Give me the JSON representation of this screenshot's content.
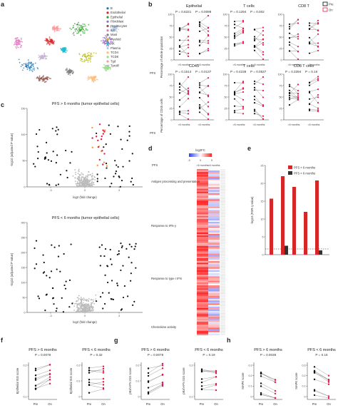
{
  "panels": {
    "a": "a",
    "b": "b",
    "c": "c",
    "d": "d",
    "e": "e",
    "f": "f",
    "g": "g",
    "h": "h"
  },
  "panel_a": {
    "legend": [
      {
        "label": "B",
        "color": "#1f77b4"
      },
      {
        "label": "Endothelial",
        "color": "#d62728"
      },
      {
        "label": "Epithelial",
        "color": "#2ca02c"
      },
      {
        "label": "Fibroblast",
        "color": "#9467bd"
      },
      {
        "label": "Hepatocytes",
        "color": "#8c564b"
      },
      {
        "label": "ILC",
        "color": "#e377c2"
      },
      {
        "label": "Mast",
        "color": "#7f7f7f"
      },
      {
        "label": "Myeloid",
        "color": "#bcbd22"
      },
      {
        "label": "NK",
        "color": "#17becf"
      },
      {
        "label": "Plasma",
        "color": "#aec7e8"
      },
      {
        "label": "TCD4",
        "color": "#ffbb78"
      },
      {
        "label": "TCD8",
        "color": "#98df8a"
      },
      {
        "label": "Tgd",
        "color": "#ff9896"
      },
      {
        "label": "Tprolif",
        "color": "#c5b0d5"
      }
    ]
  },
  "panel_b": {
    "legend": [
      {
        "label": "Pre",
        "color": "#000000"
      },
      {
        "label": "On",
        "color": "#e6194b"
      }
    ],
    "row1_ylabel": "Percentage of whole population",
    "row2_ylabel": "Percentage of CD45 cells",
    "pfs_label": "PFS",
    "x_groups": [
      ">6 months",
      "<6 months"
    ],
    "plots": [
      {
        "title": "Epithelial",
        "p1": "P = 0.6221",
        "p2": "P = 0.0098"
      },
      {
        "title": "T cells",
        "p1": "P = 0.1294",
        "p2": "P = 0.002"
      },
      {
        "title": "CD8 T",
        "p1": "",
        "p2": ""
      },
      {
        "title": "CD45",
        "p1": "P = 0.1514",
        "p2": "P = 0.0137"
      },
      {
        "title": "T cells",
        "p1": "P = 0.4238",
        "p2": "P = 0.0537"
      },
      {
        "title": "CD8 T cells",
        "p1": "P = 0.3394",
        "p2": "P = 0.16"
      }
    ]
  },
  "panel_c": {
    "title_top": "PFS > 6 months (tumor epithelial cells)",
    "title_bottom": "PFS < 6 months (tumor epithelial cells)",
    "ylabel": "-log10 (adjusted P value)",
    "xlabel": "log2 (fold change)",
    "top_yticks": [
      "0",
      "50",
      "100",
      "150"
    ],
    "bottom_yticks": [
      "0",
      "50",
      "100",
      "150",
      "200",
      "250",
      "300"
    ],
    "xticks": [
      "-3",
      "0",
      "3"
    ]
  },
  "panel_d": {
    "scale_title": "log2FC",
    "scale_ticks": [
      "-5",
      "0",
      "5"
    ],
    "pfs_label": "PFS",
    "columns": [
      ">6 months",
      "<6 months"
    ],
    "categories": [
      "Antigen processing and presentation",
      "Response to IFN-γ",
      "Response to type I IFN",
      "Chemokine activity"
    ]
  },
  "panel_e": {
    "legend": [
      {
        "label": "PFS > 6 months",
        "color": "#d62728"
      },
      {
        "label": "PFS < 6 months",
        "color": "#333333"
      }
    ],
    "ylabel": "-log10 (FDR q value)",
    "yticks": [
      "0",
      "5",
      "10",
      "15",
      "20",
      "25"
    ]
  },
  "panel_f": {
    "plots": [
      {
        "title": "PFS > 6 months",
        "p": "P = 0.0078",
        "ylabel": "Epithelial ISG score",
        "yticks": [
          "0.1",
          "0.2"
        ]
      },
      {
        "title": "PFS < 6 months",
        "p": "P = 0.32",
        "ylabel": "Epithelial ISG score",
        "yticks": [
          "0",
          "0.1",
          "0.2"
        ]
      }
    ],
    "x": [
      "Pre",
      "On"
    ]
  },
  "panel_g": {
    "plots": [
      {
        "title": "PFS > 6 months",
        "p": "P = 0.0078",
        "ylabel": "pExh-IFN ISG score",
        "yticks": [
          "0",
          "0.1",
          "0.2"
        ]
      },
      {
        "title": "PFS < 6 months",
        "p": "P = 0.19",
        "ylabel": "pExh-IFN ISG score",
        "yticks": [
          "0.1",
          "0.2"
        ]
      }
    ],
    "x": [
      "Pre",
      "On"
    ]
  },
  "panel_h": {
    "plots": [
      {
        "title": "PFS > 6 months",
        "p": "P = 0.0039",
        "ylabel": "MAPK score",
        "yticks": [
          "0",
          "0.1",
          "0.2",
          "0.3"
        ]
      },
      {
        "title": "PFS < 6 months",
        "p": "P = 0.16",
        "ylabel": "MAPK score",
        "yticks": [
          "0",
          "0.1",
          "0.2",
          "0.3"
        ]
      }
    ],
    "x": [
      "Pre",
      "On"
    ]
  },
  "chart_data": [
    {
      "type": "bar",
      "panel": "e",
      "series": [
        {
          "name": "PFS > 6 months",
          "values": [
            15.7,
            22,
            19,
            12,
            20.8
          ]
        },
        {
          "name": "PFS < 6 months",
          "values": [
            0,
            2.5,
            0,
            0,
            1.2
          ]
        }
      ],
      "ylabel": "-log10 (FDR q value)",
      "ylim": [
        0,
        25
      ]
    }
  ]
}
